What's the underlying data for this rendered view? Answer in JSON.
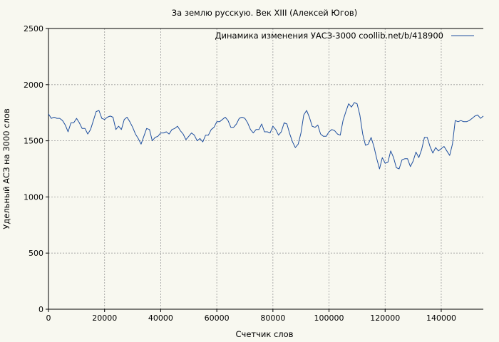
{
  "chart_data": {
    "type": "line",
    "title": "За землю русскую. Век XIII (Алексей Югов)",
    "xlabel": "Счетчик слов",
    "ylabel": "Удельный АСЗ на 3000 слов",
    "xlim": [
      0,
      155000
    ],
    "ylim": [
      0,
      2500
    ],
    "x_ticks": [
      0,
      20000,
      40000,
      60000,
      80000,
      100000,
      120000,
      140000
    ],
    "x_tick_labels": [
      "0",
      "20000",
      "40000",
      "60000",
      "80000",
      "100000",
      "120000",
      "140000"
    ],
    "y_ticks": [
      0,
      500,
      1000,
      1500,
      2000,
      2500
    ],
    "y_tick_labels": [
      "0",
      "500",
      "1000",
      "1500",
      "2000",
      "2500"
    ],
    "grid": true,
    "legend_position": "top-right",
    "series": [
      {
        "name": "Динамика изменения УАСЗ-3000  coollib.net/b/418900",
        "color": "#1f4f9f",
        "points": [
          [
            0,
            1740
          ],
          [
            1000,
            1700
          ],
          [
            2000,
            1710
          ],
          [
            3000,
            1700
          ],
          [
            4000,
            1700
          ],
          [
            5000,
            1680
          ],
          [
            6000,
            1640
          ],
          [
            7000,
            1580
          ],
          [
            8000,
            1660
          ],
          [
            9000,
            1660
          ],
          [
            10000,
            1700
          ],
          [
            11000,
            1660
          ],
          [
            12000,
            1610
          ],
          [
            13000,
            1610
          ],
          [
            14000,
            1560
          ],
          [
            15000,
            1600
          ],
          [
            16000,
            1680
          ],
          [
            17000,
            1760
          ],
          [
            18000,
            1770
          ],
          [
            19000,
            1700
          ],
          [
            20000,
            1690
          ],
          [
            21000,
            1710
          ],
          [
            22000,
            1720
          ],
          [
            23000,
            1710
          ],
          [
            24000,
            1600
          ],
          [
            25000,
            1630
          ],
          [
            26000,
            1600
          ],
          [
            27000,
            1690
          ],
          [
            28000,
            1710
          ],
          [
            29000,
            1670
          ],
          [
            30000,
            1620
          ],
          [
            31000,
            1560
          ],
          [
            32000,
            1520
          ],
          [
            33000,
            1470
          ],
          [
            34000,
            1540
          ],
          [
            35000,
            1610
          ],
          [
            36000,
            1600
          ],
          [
            37000,
            1500
          ],
          [
            38000,
            1530
          ],
          [
            39000,
            1540
          ],
          [
            40000,
            1570
          ],
          [
            41000,
            1570
          ],
          [
            42000,
            1580
          ],
          [
            43000,
            1560
          ],
          [
            44000,
            1600
          ],
          [
            45000,
            1610
          ],
          [
            46000,
            1630
          ],
          [
            47000,
            1590
          ],
          [
            48000,
            1560
          ],
          [
            49000,
            1510
          ],
          [
            50000,
            1540
          ],
          [
            51000,
            1570
          ],
          [
            52000,
            1550
          ],
          [
            53000,
            1500
          ],
          [
            54000,
            1520
          ],
          [
            55000,
            1490
          ],
          [
            56000,
            1550
          ],
          [
            57000,
            1550
          ],
          [
            58000,
            1600
          ],
          [
            59000,
            1620
          ],
          [
            60000,
            1670
          ],
          [
            61000,
            1670
          ],
          [
            62000,
            1690
          ],
          [
            63000,
            1710
          ],
          [
            64000,
            1680
          ],
          [
            65000,
            1620
          ],
          [
            66000,
            1620
          ],
          [
            67000,
            1650
          ],
          [
            68000,
            1700
          ],
          [
            69000,
            1710
          ],
          [
            70000,
            1700
          ],
          [
            71000,
            1660
          ],
          [
            72000,
            1600
          ],
          [
            73000,
            1570
          ],
          [
            74000,
            1600
          ],
          [
            75000,
            1600
          ],
          [
            76000,
            1650
          ],
          [
            77000,
            1580
          ],
          [
            78000,
            1580
          ],
          [
            79000,
            1570
          ],
          [
            80000,
            1630
          ],
          [
            81000,
            1600
          ],
          [
            82000,
            1550
          ],
          [
            83000,
            1580
          ],
          [
            84000,
            1660
          ],
          [
            85000,
            1650
          ],
          [
            86000,
            1560
          ],
          [
            87000,
            1490
          ],
          [
            88000,
            1440
          ],
          [
            89000,
            1470
          ],
          [
            90000,
            1570
          ],
          [
            91000,
            1730
          ],
          [
            92000,
            1770
          ],
          [
            93000,
            1710
          ],
          [
            94000,
            1630
          ],
          [
            95000,
            1620
          ],
          [
            96000,
            1640
          ],
          [
            97000,
            1560
          ],
          [
            98000,
            1540
          ],
          [
            99000,
            1540
          ],
          [
            100000,
            1580
          ],
          [
            101000,
            1600
          ],
          [
            102000,
            1590
          ],
          [
            103000,
            1560
          ],
          [
            104000,
            1550
          ],
          [
            105000,
            1680
          ],
          [
            106000,
            1760
          ],
          [
            107000,
            1830
          ],
          [
            108000,
            1800
          ],
          [
            109000,
            1840
          ],
          [
            110000,
            1830
          ],
          [
            111000,
            1730
          ],
          [
            112000,
            1560
          ],
          [
            113000,
            1460
          ],
          [
            114000,
            1470
          ],
          [
            115000,
            1530
          ],
          [
            116000,
            1450
          ],
          [
            117000,
            1340
          ],
          [
            118000,
            1250
          ],
          [
            119000,
            1350
          ],
          [
            120000,
            1300
          ],
          [
            121000,
            1310
          ],
          [
            122000,
            1410
          ],
          [
            123000,
            1350
          ],
          [
            124000,
            1260
          ],
          [
            125000,
            1250
          ],
          [
            126000,
            1330
          ],
          [
            127000,
            1340
          ],
          [
            128000,
            1340
          ],
          [
            129000,
            1270
          ],
          [
            130000,
            1320
          ],
          [
            131000,
            1400
          ],
          [
            132000,
            1350
          ],
          [
            133000,
            1420
          ],
          [
            134000,
            1530
          ],
          [
            135000,
            1530
          ],
          [
            136000,
            1450
          ],
          [
            137000,
            1390
          ],
          [
            138000,
            1440
          ],
          [
            139000,
            1410
          ],
          [
            140000,
            1430
          ],
          [
            141000,
            1450
          ],
          [
            142000,
            1410
          ],
          [
            143000,
            1370
          ],
          [
            144000,
            1470
          ],
          [
            145000,
            1680
          ],
          [
            146000,
            1670
          ],
          [
            147000,
            1680
          ],
          [
            148000,
            1670
          ],
          [
            149000,
            1670
          ],
          [
            150000,
            1680
          ],
          [
            151000,
            1700
          ],
          [
            152000,
            1720
          ],
          [
            153000,
            1730
          ],
          [
            154000,
            1700
          ],
          [
            155000,
            1720
          ]
        ]
      }
    ]
  }
}
